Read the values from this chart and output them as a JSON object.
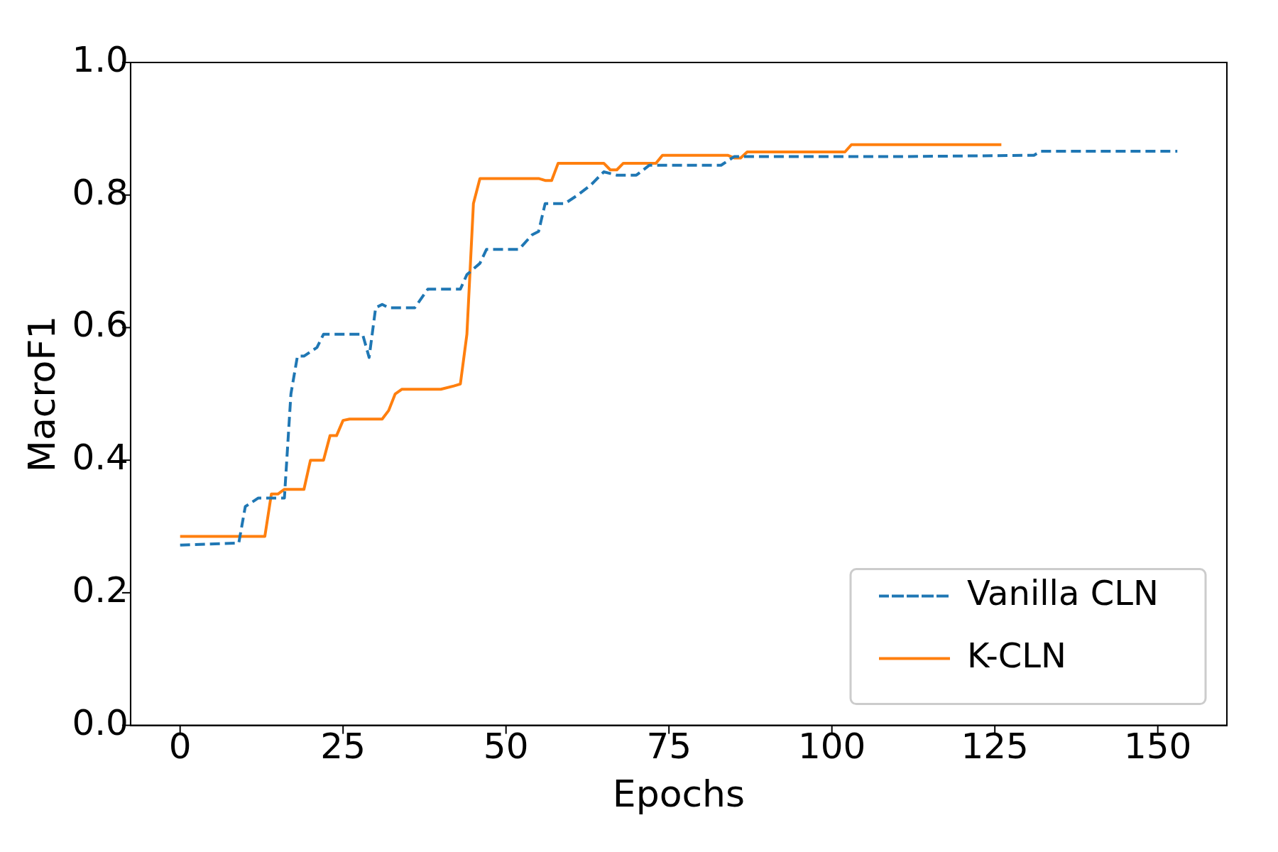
{
  "chart_data": {
    "type": "line",
    "xlabel": "Epochs",
    "ylabel": "MacroF1",
    "xlim": [
      -7.6,
      160.6
    ],
    "xticks": [
      0,
      25,
      50,
      75,
      100,
      125,
      150
    ],
    "ylim": [
      0,
      1
    ],
    "yticks": [
      {
        "value": 0,
        "label": "0.0"
      },
      {
        "value": 0.2,
        "label": "0.2"
      },
      {
        "value": 0.4,
        "label": "0.4"
      },
      {
        "value": 0.6,
        "label": "0.6"
      },
      {
        "value": 0.8,
        "label": "0.8"
      },
      {
        "value": 1,
        "label": "1.0"
      }
    ],
    "grid": false,
    "legend": "bottom right",
    "marker": "none",
    "series": [
      {
        "name": "Vanilla CLN",
        "color": "#1f77b4",
        "line_style": "dashed",
        "x": [
          0,
          9,
          10,
          12,
          16,
          17,
          18,
          19,
          21,
          22,
          28,
          29,
          30,
          31,
          32,
          36,
          38,
          43,
          44,
          46,
          47,
          52,
          54,
          55,
          56,
          59,
          61,
          63,
          65,
          67,
          70,
          72,
          83,
          85,
          100,
          110,
          131,
          132,
          153
        ],
        "values": [
          0.272,
          0.275,
          0.33,
          0.343,
          0.343,
          0.5,
          0.557,
          0.557,
          0.57,
          0.59,
          0.59,
          0.555,
          0.63,
          0.635,
          0.63,
          0.63,
          0.658,
          0.658,
          0.68,
          0.697,
          0.718,
          0.718,
          0.74,
          0.745,
          0.787,
          0.787,
          0.8,
          0.815,
          0.835,
          0.83,
          0.83,
          0.845,
          0.845,
          0.858,
          0.858,
          0.858,
          0.86,
          0.866,
          0.866
        ]
      },
      {
        "name": "K-CLN",
        "color": "#ff7f0e",
        "line_style": "solid",
        "x": [
          0,
          13,
          14,
          15,
          16,
          19,
          20,
          22,
          23,
          24,
          25,
          26,
          31,
          32,
          33,
          34,
          40,
          42,
          43,
          44,
          45,
          46,
          55,
          56,
          57,
          58,
          65,
          66,
          67,
          68,
          73,
          74,
          84,
          85,
          86,
          87,
          102,
          103,
          126
        ],
        "values": [
          0.285,
          0.285,
          0.349,
          0.349,
          0.356,
          0.356,
          0.4,
          0.4,
          0.437,
          0.437,
          0.46,
          0.462,
          0.462,
          0.475,
          0.5,
          0.507,
          0.507,
          0.512,
          0.515,
          0.59,
          0.787,
          0.825,
          0.825,
          0.822,
          0.822,
          0.848,
          0.848,
          0.838,
          0.838,
          0.848,
          0.848,
          0.86,
          0.86,
          0.856,
          0.856,
          0.865,
          0.865,
          0.876,
          0.876
        ]
      }
    ]
  }
}
